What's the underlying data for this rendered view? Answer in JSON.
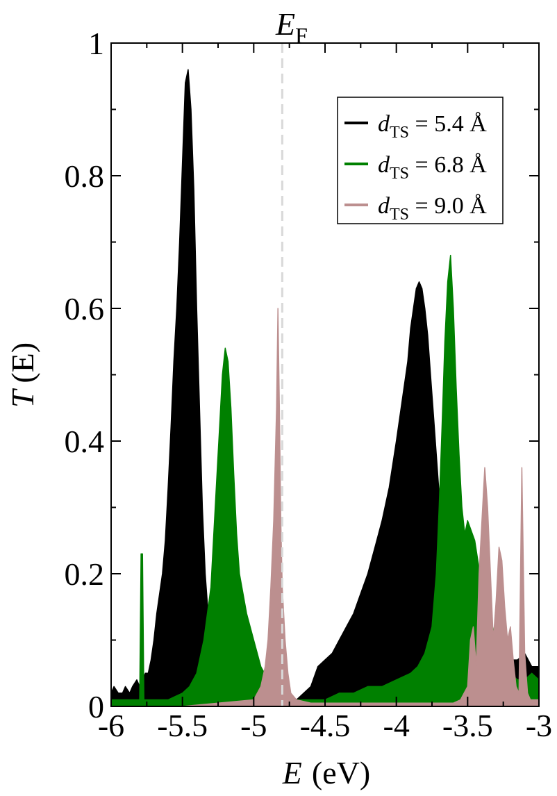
{
  "chart_data": {
    "type": "area",
    "xlabel_var": "E",
    "xlabel_unit": "(eV)",
    "ylabel_var": "T",
    "ylabel_arg": "(E)",
    "xlim": [
      -6,
      -3
    ],
    "ylim": [
      0,
      1
    ],
    "x_ticks": [
      -6,
      -5.5,
      -5,
      -4.5,
      -4,
      -3.5,
      -3
    ],
    "x_tick_labels": [
      "-6",
      "-5.5",
      "-5",
      "-4.5",
      "-4",
      "-3.5",
      "-3"
    ],
    "y_ticks": [
      0,
      0.2,
      0.4,
      0.6,
      0.8,
      1
    ],
    "y_tick_labels": [
      "0",
      "0.2",
      "0.4",
      "0.6",
      "0.8",
      "1"
    ],
    "grid": false,
    "legend_position": "top-right",
    "reference_line": {
      "x": -4.8,
      "label_main": "E",
      "label_sub": "F",
      "color": "#d9d9d9",
      "style": "dashed"
    },
    "series": [
      {
        "name_main": "d",
        "name_sub": "TS",
        "name_value": " = 5.4 Å",
        "color": "#000000",
        "x": [
          -6.0,
          -5.98,
          -5.95,
          -5.92,
          -5.9,
          -5.87,
          -5.85,
          -5.82,
          -5.8,
          -5.78,
          -5.76,
          -5.74,
          -5.72,
          -5.7,
          -5.68,
          -5.66,
          -5.64,
          -5.62,
          -5.6,
          -5.58,
          -5.56,
          -5.54,
          -5.52,
          -5.5,
          -5.48,
          -5.46,
          -5.44,
          -5.42,
          -5.4,
          -5.38,
          -5.36,
          -5.34,
          -5.32,
          -5.3,
          -5.28,
          -5.25,
          -5.2,
          -5.1,
          -5.0,
          -4.9,
          -4.8,
          -4.7,
          -4.6,
          -4.55,
          -4.5,
          -4.45,
          -4.4,
          -4.35,
          -4.3,
          -4.25,
          -4.2,
          -4.15,
          -4.1,
          -4.05,
          -4.0,
          -3.96,
          -3.92,
          -3.9,
          -3.88,
          -3.86,
          -3.84,
          -3.82,
          -3.8,
          -3.78,
          -3.76,
          -3.74,
          -3.72,
          -3.7,
          -3.68,
          -3.66,
          -3.64,
          -3.62,
          -3.6,
          -3.55,
          -3.5,
          -3.45,
          -3.4,
          -3.35,
          -3.3,
          -3.25,
          -3.2,
          -3.15,
          -3.1,
          -3.05,
          -3.0
        ],
        "y": [
          0.02,
          0.03,
          0.02,
          0.02,
          0.03,
          0.02,
          0.03,
          0.04,
          0.03,
          0.04,
          0.05,
          0.05,
          0.07,
          0.1,
          0.14,
          0.17,
          0.2,
          0.25,
          0.33,
          0.42,
          0.52,
          0.6,
          0.7,
          0.82,
          0.94,
          0.96,
          0.9,
          0.78,
          0.6,
          0.45,
          0.3,
          0.2,
          0.14,
          0.09,
          0.06,
          0.04,
          0.02,
          0.01,
          0.01,
          0.005,
          0.005,
          0.01,
          0.03,
          0.06,
          0.07,
          0.08,
          0.1,
          0.12,
          0.14,
          0.17,
          0.2,
          0.24,
          0.28,
          0.33,
          0.4,
          0.46,
          0.52,
          0.57,
          0.6,
          0.63,
          0.64,
          0.63,
          0.6,
          0.56,
          0.5,
          0.44,
          0.38,
          0.32,
          0.27,
          0.22,
          0.18,
          0.15,
          0.12,
          0.08,
          0.07,
          0.08,
          0.09,
          0.1,
          0.09,
          0.08,
          0.07,
          0.07,
          0.08,
          0.06,
          0.06
        ]
      },
      {
        "name_main": "d",
        "name_sub": "TS",
        "name_value": " = 6.8 Å",
        "color": "#008000",
        "x": [
          -6.0,
          -5.9,
          -5.8,
          -5.79,
          -5.78,
          -5.77,
          -5.7,
          -5.6,
          -5.5,
          -5.45,
          -5.4,
          -5.35,
          -5.3,
          -5.28,
          -5.26,
          -5.24,
          -5.22,
          -5.2,
          -5.18,
          -5.16,
          -5.14,
          -5.12,
          -5.1,
          -5.05,
          -5.0,
          -4.95,
          -4.9,
          -4.8,
          -4.7,
          -4.6,
          -4.5,
          -4.4,
          -4.3,
          -4.2,
          -4.1,
          -4.0,
          -3.9,
          -3.85,
          -3.8,
          -3.75,
          -3.72,
          -3.7,
          -3.68,
          -3.66,
          -3.64,
          -3.62,
          -3.6,
          -3.58,
          -3.56,
          -3.54,
          -3.52,
          -3.5,
          -3.45,
          -3.4,
          -3.35,
          -3.3,
          -3.25,
          -3.2,
          -3.15,
          -3.1,
          -3.05,
          -3.0
        ],
        "y": [
          0.01,
          0.01,
          0.01,
          0.23,
          0.23,
          0.01,
          0.01,
          0.01,
          0.02,
          0.03,
          0.05,
          0.1,
          0.18,
          0.26,
          0.34,
          0.42,
          0.5,
          0.54,
          0.52,
          0.45,
          0.35,
          0.26,
          0.2,
          0.14,
          0.1,
          0.06,
          0.04,
          0.01,
          0.01,
          0.01,
          0.01,
          0.02,
          0.02,
          0.03,
          0.03,
          0.04,
          0.05,
          0.06,
          0.08,
          0.12,
          0.2,
          0.3,
          0.42,
          0.55,
          0.64,
          0.68,
          0.6,
          0.48,
          0.38,
          0.3,
          0.26,
          0.28,
          0.25,
          0.18,
          0.14,
          0.1,
          0.07,
          0.05,
          0.04,
          0.04,
          0.05,
          0.04
        ]
      },
      {
        "name_main": "d",
        "name_sub": "TS",
        "name_value": " = 9.0 Å",
        "color": "#bc8f8f",
        "x": [
          -6.0,
          -5.5,
          -5.0,
          -4.95,
          -4.92,
          -4.9,
          -4.88,
          -4.86,
          -4.84,
          -4.83,
          -4.82,
          -4.81,
          -4.8,
          -4.78,
          -4.76,
          -4.74,
          -4.7,
          -4.6,
          -4.5,
          -4.4,
          -4.3,
          -4.2,
          -4.1,
          -4.0,
          -3.9,
          -3.8,
          -3.7,
          -3.6,
          -3.55,
          -3.5,
          -3.48,
          -3.46,
          -3.44,
          -3.42,
          -3.4,
          -3.38,
          -3.36,
          -3.34,
          -3.32,
          -3.3,
          -3.28,
          -3.26,
          -3.24,
          -3.22,
          -3.2,
          -3.18,
          -3.16,
          -3.14,
          -3.12,
          -3.1,
          -3.08,
          -3.06,
          -3.0
        ],
        "y": [
          0.0,
          0.0,
          0.01,
          0.03,
          0.06,
          0.1,
          0.18,
          0.28,
          0.45,
          0.6,
          0.45,
          0.28,
          0.18,
          0.1,
          0.05,
          0.02,
          0.01,
          0.005,
          0.005,
          0.005,
          0.005,
          0.005,
          0.005,
          0.005,
          0.005,
          0.005,
          0.005,
          0.005,
          0.01,
          0.03,
          0.1,
          0.12,
          0.06,
          0.2,
          0.28,
          0.36,
          0.3,
          0.2,
          0.1,
          0.16,
          0.24,
          0.22,
          0.15,
          0.1,
          0.12,
          0.07,
          0.03,
          0.02,
          0.36,
          0.08,
          0.02,
          0.01,
          0.01
        ]
      }
    ]
  }
}
